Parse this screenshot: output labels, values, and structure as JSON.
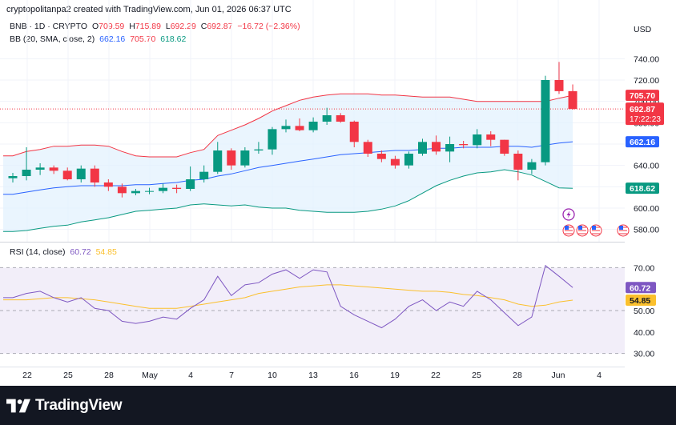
{
  "header": {
    "attribution": "cryptopolitanpa2 created with TradingView.com, Jun 01, 2026 06:37 UTC"
  },
  "legend": {
    "symbol": "BNB · 1D · CRYPTO",
    "o_label": "O",
    "o_value": "709.59",
    "h_label": "H",
    "h_value": "715.89",
    "l_label": "L",
    "l_value": "692.29",
    "c_label": "C",
    "c_value": "692.87",
    "change": "−16.72 (−2.36%)",
    "bb_label": "BB (20, SMA, close, 2)",
    "bb_basis": "662.16",
    "bb_upper": "705.70",
    "bb_lower": "618.62"
  },
  "rsi_legend": {
    "label": "RSI (14, close)",
    "rsi": "60.72",
    "ma": "54.85"
  },
  "price_axis": {
    "currency": "USD",
    "ticks": [
      "740.00",
      "720.00",
      "700.00",
      "680.00",
      "660.00",
      "640.00",
      "620.00",
      "600.00",
      "580.00"
    ]
  },
  "price_badges": {
    "upper": "705.70",
    "close": "692.87",
    "countdown": "17:22:23",
    "basis": "662.16",
    "lower": "618.62"
  },
  "rsi_axis": {
    "ticks": [
      "70.00",
      "60.00",
      "50.00",
      "40.00",
      "30.00"
    ],
    "badge_rsi": "60.72",
    "badge_ma": "54.85"
  },
  "time_axis": {
    "labels": [
      "22",
      "25",
      "28",
      "May",
      "4",
      "7",
      "10",
      "13",
      "16",
      "19",
      "22",
      "25",
      "28",
      "Jun",
      "4"
    ]
  },
  "footer": {
    "brand": "TradingView"
  },
  "colors": {
    "up": "#089981",
    "down": "#f23645",
    "upper_band": "#f23645",
    "basis": "#2962ff",
    "lower_band": "#089981",
    "band_fill": "#e3f2fd",
    "rsi_line": "#7e57c2",
    "rsi_ma": "#fbc02d"
  },
  "chart_data": {
    "type": "candlestick",
    "symbol": "BNB",
    "interval": "1D",
    "ylim": [
      570,
      750
    ],
    "candles": [
      {
        "o": 628,
        "h": 633,
        "l": 624,
        "c": 630
      },
      {
        "o": 630,
        "h": 657,
        "l": 626,
        "c": 636
      },
      {
        "o": 636,
        "h": 642,
        "l": 631,
        "c": 638
      },
      {
        "o": 638,
        "h": 640,
        "l": 632,
        "c": 635
      },
      {
        "o": 635,
        "h": 638,
        "l": 626,
        "c": 627
      },
      {
        "o": 627,
        "h": 640,
        "l": 624,
        "c": 637
      },
      {
        "o": 637,
        "h": 640,
        "l": 620,
        "c": 624
      },
      {
        "o": 624,
        "h": 627,
        "l": 616,
        "c": 620
      },
      {
        "o": 620,
        "h": 623,
        "l": 610,
        "c": 614
      },
      {
        "o": 614,
        "h": 618,
        "l": 612,
        "c": 616
      },
      {
        "o": 616,
        "h": 619,
        "l": 613,
        "c": 616
      },
      {
        "o": 616,
        "h": 623,
        "l": 614,
        "c": 619
      },
      {
        "o": 619,
        "h": 622,
        "l": 614,
        "c": 618
      },
      {
        "o": 618,
        "h": 639,
        "l": 616,
        "c": 627
      },
      {
        "o": 627,
        "h": 640,
        "l": 624,
        "c": 634
      },
      {
        "o": 634,
        "h": 662,
        "l": 632,
        "c": 654
      },
      {
        "o": 654,
        "h": 656,
        "l": 636,
        "c": 640
      },
      {
        "o": 640,
        "h": 657,
        "l": 638,
        "c": 654
      },
      {
        "o": 654,
        "h": 662,
        "l": 651,
        "c": 655
      },
      {
        "o": 655,
        "h": 676,
        "l": 650,
        "c": 674
      },
      {
        "o": 674,
        "h": 683,
        "l": 671,
        "c": 677
      },
      {
        "o": 677,
        "h": 684,
        "l": 672,
        "c": 673
      },
      {
        "o": 673,
        "h": 685,
        "l": 671,
        "c": 681
      },
      {
        "o": 681,
        "h": 694,
        "l": 678,
        "c": 687
      },
      {
        "o": 687,
        "h": 689,
        "l": 680,
        "c": 681
      },
      {
        "o": 681,
        "h": 682,
        "l": 657,
        "c": 662
      },
      {
        "o": 662,
        "h": 664,
        "l": 648,
        "c": 651
      },
      {
        "o": 651,
        "h": 654,
        "l": 643,
        "c": 646
      },
      {
        "o": 646,
        "h": 649,
        "l": 637,
        "c": 640
      },
      {
        "o": 640,
        "h": 653,
        "l": 637,
        "c": 651
      },
      {
        "o": 651,
        "h": 665,
        "l": 649,
        "c": 662
      },
      {
        "o": 662,
        "h": 668,
        "l": 650,
        "c": 653
      },
      {
        "o": 653,
        "h": 667,
        "l": 643,
        "c": 660
      },
      {
        "o": 660,
        "h": 663,
        "l": 656,
        "c": 659
      },
      {
        "o": 659,
        "h": 674,
        "l": 656,
        "c": 669
      },
      {
        "o": 669,
        "h": 672,
        "l": 658,
        "c": 664
      },
      {
        "o": 664,
        "h": 664,
        "l": 649,
        "c": 651
      },
      {
        "o": 651,
        "h": 654,
        "l": 626,
        "c": 636
      },
      {
        "o": 636,
        "h": 646,
        "l": 632,
        "c": 643
      },
      {
        "o": 643,
        "h": 724,
        "l": 640,
        "c": 720
      },
      {
        "o": 720,
        "h": 737,
        "l": 707,
        "c": 709.59
      },
      {
        "o": 709.59,
        "h": 715.89,
        "l": 692.29,
        "c": 692.87
      }
    ],
    "bollinger": {
      "upper": [
        649,
        653,
        655,
        658,
        658,
        659,
        659,
        658,
        653,
        649,
        648,
        648,
        648,
        652,
        655,
        668,
        673,
        678,
        684,
        691,
        696,
        701,
        704,
        706,
        707,
        707,
        707,
        706,
        706,
        705,
        704,
        704,
        704,
        702,
        700,
        700,
        700,
        700,
        700,
        700,
        703,
        705.7
      ],
      "basis": [
        613,
        615,
        617,
        619,
        620,
        621,
        621,
        621,
        621,
        622,
        622,
        623,
        624,
        626,
        627,
        630,
        632,
        635,
        638,
        640,
        642,
        644,
        646,
        648,
        650,
        651,
        652,
        653,
        654,
        654,
        655,
        656,
        656,
        657,
        657,
        657,
        658,
        658,
        657,
        659,
        661,
        662.16
      ],
      "lower": [
        578,
        579,
        581,
        583,
        584,
        587,
        589,
        591,
        594,
        597,
        598,
        599,
        600,
        603,
        604,
        603,
        602,
        603,
        601,
        600,
        600,
        598,
        597,
        596,
        596,
        596,
        597,
        599,
        602,
        607,
        614,
        621,
        626,
        630,
        633,
        634,
        636,
        634,
        631,
        625,
        619,
        618.62
      ]
    },
    "rsi": {
      "ylim": [
        25,
        78
      ],
      "levels": [
        70,
        50,
        30
      ],
      "rsi": [
        56,
        58,
        59,
        56,
        54,
        56,
        51,
        50,
        45,
        44,
        45,
        47,
        46,
        51,
        55,
        66,
        57,
        62,
        63,
        67,
        69,
        65,
        69,
        68,
        52,
        48,
        45,
        42,
        46,
        52,
        55,
        50,
        54,
        52,
        59,
        55,
        49,
        43,
        47,
        71,
        66,
        60.72
      ],
      "ma": [
        55,
        55,
        55.5,
        56,
        56,
        55.5,
        55,
        54,
        53,
        52,
        51,
        51,
        51,
        52,
        53,
        54,
        55,
        56,
        58,
        59,
        60,
        61,
        61.5,
        62,
        62,
        61.5,
        61,
        60.5,
        60,
        59.5,
        59,
        59,
        58.5,
        57.5,
        57,
        56,
        55,
        53,
        52,
        52.5,
        54,
        54.85
      ]
    },
    "time_labels": [
      "22",
      "25",
      "28",
      "May",
      "4",
      "7",
      "10",
      "13",
      "16",
      "19",
      "22",
      "25",
      "28",
      "Jun",
      "4"
    ]
  }
}
